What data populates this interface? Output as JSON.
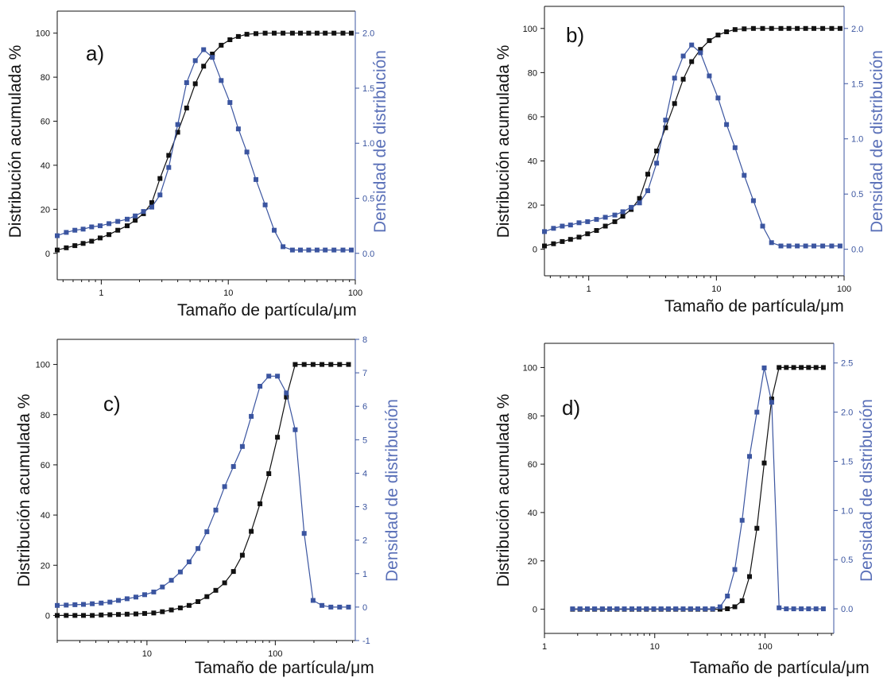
{
  "colors": {
    "cumulative": "#111111",
    "density": "#3b55a0",
    "density_label": "#5a70b8"
  },
  "chart_data": [
    {
      "type": "line",
      "panel": "a)",
      "xlabel": "Tamaño de partícula/μm",
      "ylabel": "Distribución acumulada %",
      "ylabel_right": "Densidad de distribución",
      "x_scale": "log",
      "xlim": [
        0.45,
        100
      ],
      "ylim": [
        -12,
        110
      ],
      "ylim_right": [
        -0.24,
        2.2
      ],
      "x_ticks": [
        "1",
        "10",
        "100"
      ],
      "y_ticks": [
        "0",
        "20",
        "40",
        "60",
        "80",
        "100"
      ],
      "y_ticks_right": [
        "0.0",
        "0.5",
        "1.0",
        "1.5",
        "2.0"
      ],
      "series": [
        {
          "axis": "left",
          "x": [
            0.45,
            0.53,
            0.62,
            0.72,
            0.84,
            0.98,
            1.15,
            1.35,
            1.6,
            1.85,
            2.15,
            2.5,
            2.9,
            3.4,
            4.0,
            4.7,
            5.5,
            6.4,
            7.5,
            8.8,
            10.3,
            12,
            14,
            16.5,
            19.5,
            23,
            27,
            32,
            37,
            43,
            50,
            58,
            68,
            80,
            93
          ],
          "values": [
            1.5,
            2.5,
            3.5,
            4.5,
            5.5,
            7,
            8.5,
            10.5,
            12.5,
            15,
            18,
            23,
            34,
            44.5,
            55,
            66,
            77,
            85,
            90.5,
            94.5,
            97,
            98.5,
            99.5,
            99.8,
            100,
            100,
            100,
            100,
            100,
            100,
            100,
            100,
            100,
            100,
            100
          ]
        },
        {
          "axis": "right",
          "x": [
            0.45,
            0.53,
            0.62,
            0.72,
            0.84,
            0.98,
            1.15,
            1.35,
            1.6,
            1.85,
            2.15,
            2.5,
            2.9,
            3.4,
            4.0,
            4.7,
            5.5,
            6.4,
            7.5,
            8.8,
            10.3,
            12,
            14,
            16.5,
            19.5,
            23,
            27,
            32,
            37,
            43,
            50,
            58,
            68,
            80,
            93
          ],
          "values": [
            0.16,
            0.19,
            0.21,
            0.22,
            0.24,
            0.25,
            0.27,
            0.29,
            0.31,
            0.34,
            0.38,
            0.42,
            0.53,
            0.78,
            1.17,
            1.55,
            1.75,
            1.85,
            1.78,
            1.57,
            1.37,
            1.13,
            0.92,
            0.67,
            0.44,
            0.21,
            0.06,
            0.03,
            0.03,
            0.03,
            0.03,
            0.03,
            0.03,
            0.03,
            0.03
          ]
        }
      ]
    },
    {
      "type": "line",
      "panel": "b)",
      "xlabel": "Tamaño de partícula/μm",
      "ylabel": "Distribución acumulada %",
      "ylabel_right": "Densidad de distribución",
      "x_scale": "log",
      "xlim": [
        0.45,
        100
      ],
      "ylim": [
        -12,
        110
      ],
      "ylim_right": [
        -0.24,
        2.2
      ],
      "x_ticks": [
        "1",
        "10",
        "100"
      ],
      "y_ticks": [
        "0",
        "20",
        "40",
        "60",
        "80",
        "100"
      ],
      "y_ticks_right": [
        "0.0",
        "0.5",
        "1.0",
        "1.5",
        "2.0"
      ],
      "series": [
        {
          "axis": "left",
          "x": [
            0.45,
            0.53,
            0.62,
            0.72,
            0.84,
            0.98,
            1.15,
            1.35,
            1.6,
            1.85,
            2.15,
            2.5,
            2.9,
            3.4,
            4.0,
            4.7,
            5.5,
            6.4,
            7.5,
            8.8,
            10.3,
            12,
            14,
            16.5,
            19.5,
            23,
            27,
            32,
            37,
            43,
            50,
            58,
            68,
            80,
            93
          ],
          "values": [
            1.5,
            2.5,
            3.5,
            4.5,
            5.5,
            7,
            8.5,
            10.5,
            12.5,
            15,
            18,
            23,
            34,
            44.5,
            55,
            66,
            77,
            85,
            90.5,
            94.5,
            97,
            98.5,
            99.5,
            99.8,
            100,
            100,
            100,
            100,
            100,
            100,
            100,
            100,
            100,
            100,
            100
          ]
        },
        {
          "axis": "right",
          "x": [
            0.45,
            0.53,
            0.62,
            0.72,
            0.84,
            0.98,
            1.15,
            1.35,
            1.6,
            1.85,
            2.15,
            2.5,
            2.9,
            3.4,
            4.0,
            4.7,
            5.5,
            6.4,
            7.5,
            8.8,
            10.3,
            12,
            14,
            16.5,
            19.5,
            23,
            27,
            32,
            37,
            43,
            50,
            58,
            68,
            80,
            93
          ],
          "values": [
            0.16,
            0.19,
            0.21,
            0.22,
            0.24,
            0.25,
            0.27,
            0.29,
            0.31,
            0.34,
            0.38,
            0.42,
            0.53,
            0.78,
            1.17,
            1.55,
            1.75,
            1.85,
            1.78,
            1.57,
            1.37,
            1.13,
            0.92,
            0.67,
            0.44,
            0.21,
            0.06,
            0.03,
            0.03,
            0.03,
            0.03,
            0.03,
            0.03,
            0.03,
            0.03
          ]
        }
      ]
    },
    {
      "type": "line",
      "panel": "c)",
      "xlabel": "Tamaño de partícula/μm",
      "ylabel": "Distribución acumulada %",
      "ylabel_right": "Densidad de distribución",
      "x_scale": "log",
      "xlim": [
        2,
        420
      ],
      "ylim": [
        -10,
        110
      ],
      "ylim_right": [
        -1,
        8
      ],
      "x_ticks": [
        "10",
        "100"
      ],
      "y_ticks": [
        "0",
        "20",
        "40",
        "60",
        "80",
        "100"
      ],
      "y_ticks_right": [
        "-1",
        "0",
        "1",
        "2",
        "3",
        "4",
        "5",
        "6",
        "7",
        "8"
      ],
      "series": [
        {
          "axis": "left",
          "x": [
            2,
            2.35,
            2.75,
            3.2,
            3.75,
            4.4,
            5.15,
            6,
            7,
            8.2,
            9.6,
            11.3,
            13.2,
            15.5,
            18.2,
            21.3,
            25,
            29.3,
            34.4,
            40.3,
            47.2,
            55.4,
            65,
            76,
            89,
            104,
            122,
            143,
            168,
            197,
            231,
            271,
            317,
            372
          ],
          "values": [
            0,
            0,
            0,
            0,
            0,
            0.2,
            0.3,
            0.4,
            0.5,
            0.6,
            0.8,
            1,
            1.5,
            2.2,
            3,
            4,
            5.5,
            7.5,
            10,
            13,
            17.5,
            24,
            33.5,
            44.5,
            56.5,
            71,
            87,
            100,
            100,
            100,
            100,
            100,
            100,
            100
          ]
        },
        {
          "axis": "right",
          "x": [
            2,
            2.35,
            2.75,
            3.2,
            3.75,
            4.4,
            5.15,
            6,
            7,
            8.2,
            9.6,
            11.3,
            13.2,
            15.5,
            18.2,
            21.3,
            25,
            29.3,
            34.4,
            40.3,
            47.2,
            55.4,
            65,
            76,
            89,
            104,
            122,
            143,
            168,
            197,
            231,
            271,
            317,
            372
          ],
          "values": [
            0.05,
            0.06,
            0.07,
            0.08,
            0.1,
            0.12,
            0.15,
            0.2,
            0.25,
            0.3,
            0.37,
            0.45,
            0.6,
            0.8,
            1.05,
            1.35,
            1.75,
            2.25,
            2.9,
            3.6,
            4.2,
            4.8,
            5.7,
            6.6,
            6.9,
            6.9,
            6.4,
            5.3,
            2.2,
            0.2,
            0.05,
            0.0,
            0.0,
            0.0
          ]
        }
      ]
    },
    {
      "type": "line",
      "panel": "d)",
      "xlabel": "Tamaño de partícula/μm",
      "ylabel": "Distribución acumulada %",
      "ylabel_right": "Densidad de distribución",
      "x_scale": "log",
      "xlim": [
        1,
        420
      ],
      "ylim": [
        -10,
        110
      ],
      "ylim_right": [
        -0.25,
        2.7
      ],
      "x_ticks": [
        "1",
        "10",
        "100"
      ],
      "y_ticks": [
        "0",
        "20",
        "40",
        "60",
        "80",
        "100"
      ],
      "y_ticks_right": [
        "0.0",
        "0.5",
        "1.0",
        "1.5",
        "2.0",
        "2.5"
      ],
      "series": [
        {
          "axis": "left",
          "x": [
            1.8,
            2.1,
            2.45,
            2.85,
            3.35,
            3.9,
            4.55,
            5.3,
            6.2,
            7.2,
            8.4,
            9.8,
            11.4,
            13.3,
            15.5,
            18.1,
            21.1,
            24.6,
            28.7,
            33.5,
            39.1,
            45.6,
            53.2,
            62,
            72.3,
            84.4,
            98.4,
            115,
            134,
            156,
            182,
            213,
            248,
            290,
            338
          ],
          "values": [
            0,
            0,
            0,
            0,
            0,
            0,
            0,
            0,
            0,
            0,
            0,
            0,
            0,
            0,
            0,
            0,
            0,
            0,
            0,
            0,
            0,
            0.2,
            1,
            3.5,
            13.5,
            33.5,
            60.5,
            87,
            100,
            100,
            100,
            100,
            100,
            100,
            100
          ]
        },
        {
          "axis": "right",
          "x": [
            1.8,
            2.1,
            2.45,
            2.85,
            3.35,
            3.9,
            4.55,
            5.3,
            6.2,
            7.2,
            8.4,
            9.8,
            11.4,
            13.3,
            15.5,
            18.1,
            21.1,
            24.6,
            28.7,
            33.5,
            39.1,
            45.6,
            53.2,
            62,
            72.3,
            84.4,
            98.4,
            115,
            134,
            156,
            182,
            213,
            248,
            290,
            338
          ],
          "values": [
            0,
            0,
            0,
            0,
            0,
            0,
            0,
            0,
            0,
            0,
            0,
            0,
            0,
            0,
            0,
            0,
            0,
            0,
            0,
            0,
            0.02,
            0.13,
            0.4,
            0.9,
            1.55,
            2.0,
            2.45,
            2.1,
            0.01,
            0,
            0,
            0,
            0,
            0,
            0
          ]
        }
      ]
    }
  ]
}
